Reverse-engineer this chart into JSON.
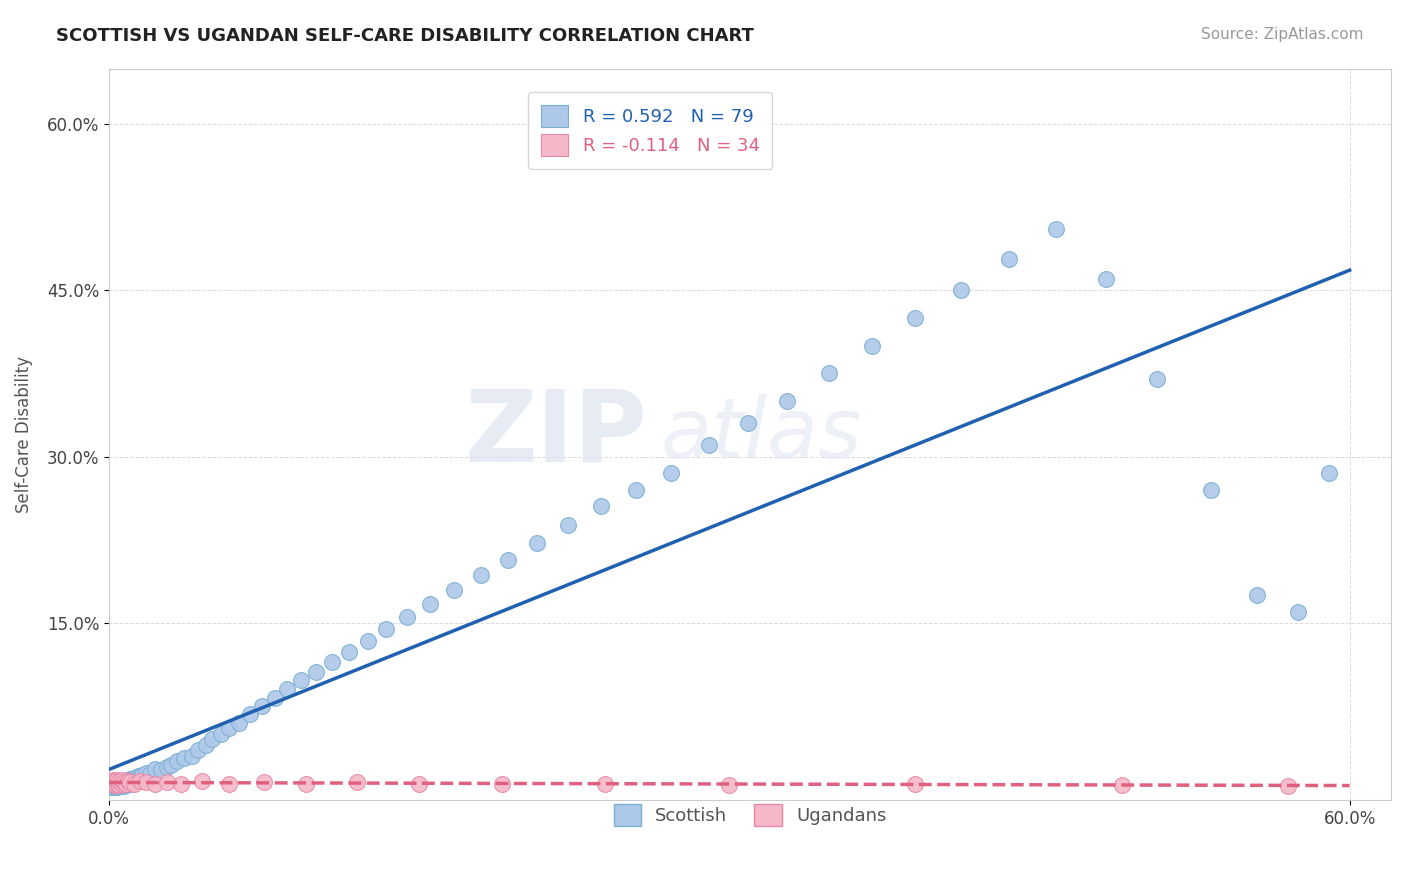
{
  "title": "SCOTTISH VS UGANDAN SELF-CARE DISABILITY CORRELATION CHART",
  "source": "Source: ZipAtlas.com",
  "ylabel": "Self-Care Disability",
  "xlim": [
    0.0,
    0.62
  ],
  "ylim": [
    -0.01,
    0.65
  ],
  "scottish_R": 0.592,
  "scottish_N": 79,
  "ugandan_R": -0.114,
  "ugandan_N": 34,
  "scottish_color": "#adc8e8",
  "scottish_edge": "#7aafd4",
  "ugandan_color": "#f4b8c8",
  "ugandan_edge": "#e888a8",
  "trend_scottish_color": "#2060b0",
  "trend_ugandan_color": "#e06080",
  "background_color": "#ffffff",
  "watermark_zip": "ZIP",
  "watermark_atlas": "atlas",
  "scottish_x": [
    0.001,
    0.002,
    0.002,
    0.003,
    0.003,
    0.004,
    0.004,
    0.004,
    0.005,
    0.005,
    0.005,
    0.006,
    0.006,
    0.006,
    0.007,
    0.007,
    0.007,
    0.008,
    0.008,
    0.009,
    0.009,
    0.01,
    0.01,
    0.011,
    0.012,
    0.013,
    0.014,
    0.015,
    0.016,
    0.018,
    0.02,
    0.022,
    0.025,
    0.028,
    0.03,
    0.033,
    0.036,
    0.04,
    0.043,
    0.047,
    0.05,
    0.054,
    0.058,
    0.063,
    0.068,
    0.074,
    0.08,
    0.086,
    0.093,
    0.1,
    0.108,
    0.116,
    0.125,
    0.134,
    0.144,
    0.155,
    0.167,
    0.18,
    0.193,
    0.207,
    0.222,
    0.238,
    0.255,
    0.272,
    0.29,
    0.309,
    0.328,
    0.348,
    0.369,
    0.39,
    0.412,
    0.435,
    0.458,
    0.482,
    0.507,
    0.533,
    0.555,
    0.575,
    0.59
  ],
  "scottish_y": [
    0.002,
    0.003,
    0.004,
    0.002,
    0.004,
    0.003,
    0.005,
    0.002,
    0.003,
    0.004,
    0.006,
    0.003,
    0.005,
    0.007,
    0.003,
    0.005,
    0.007,
    0.004,
    0.007,
    0.005,
    0.008,
    0.005,
    0.009,
    0.008,
    0.01,
    0.009,
    0.012,
    0.011,
    0.013,
    0.015,
    0.014,
    0.018,
    0.017,
    0.02,
    0.022,
    0.025,
    0.028,
    0.03,
    0.035,
    0.04,
    0.045,
    0.05,
    0.055,
    0.06,
    0.068,
    0.075,
    0.082,
    0.09,
    0.098,
    0.106,
    0.115,
    0.124,
    0.134,
    0.144,
    0.155,
    0.167,
    0.18,
    0.193,
    0.207,
    0.222,
    0.238,
    0.255,
    0.27,
    0.285,
    0.31,
    0.33,
    0.35,
    0.375,
    0.4,
    0.425,
    0.45,
    0.478,
    0.505,
    0.46,
    0.37,
    0.27,
    0.175,
    0.16,
    0.285
  ],
  "ugandan_x": [
    0.001,
    0.001,
    0.002,
    0.002,
    0.003,
    0.003,
    0.004,
    0.004,
    0.005,
    0.005,
    0.006,
    0.006,
    0.007,
    0.008,
    0.009,
    0.01,
    0.012,
    0.015,
    0.018,
    0.022,
    0.028,
    0.035,
    0.045,
    0.058,
    0.075,
    0.095,
    0.12,
    0.15,
    0.19,
    0.24,
    0.3,
    0.39,
    0.49,
    0.57
  ],
  "ugandan_y": [
    0.005,
    0.007,
    0.005,
    0.008,
    0.004,
    0.007,
    0.005,
    0.008,
    0.004,
    0.007,
    0.005,
    0.008,
    0.006,
    0.005,
    0.007,
    0.006,
    0.005,
    0.007,
    0.006,
    0.005,
    0.006,
    0.005,
    0.007,
    0.005,
    0.006,
    0.005,
    0.006,
    0.005,
    0.005,
    0.005,
    0.004,
    0.005,
    0.004,
    0.003
  ]
}
